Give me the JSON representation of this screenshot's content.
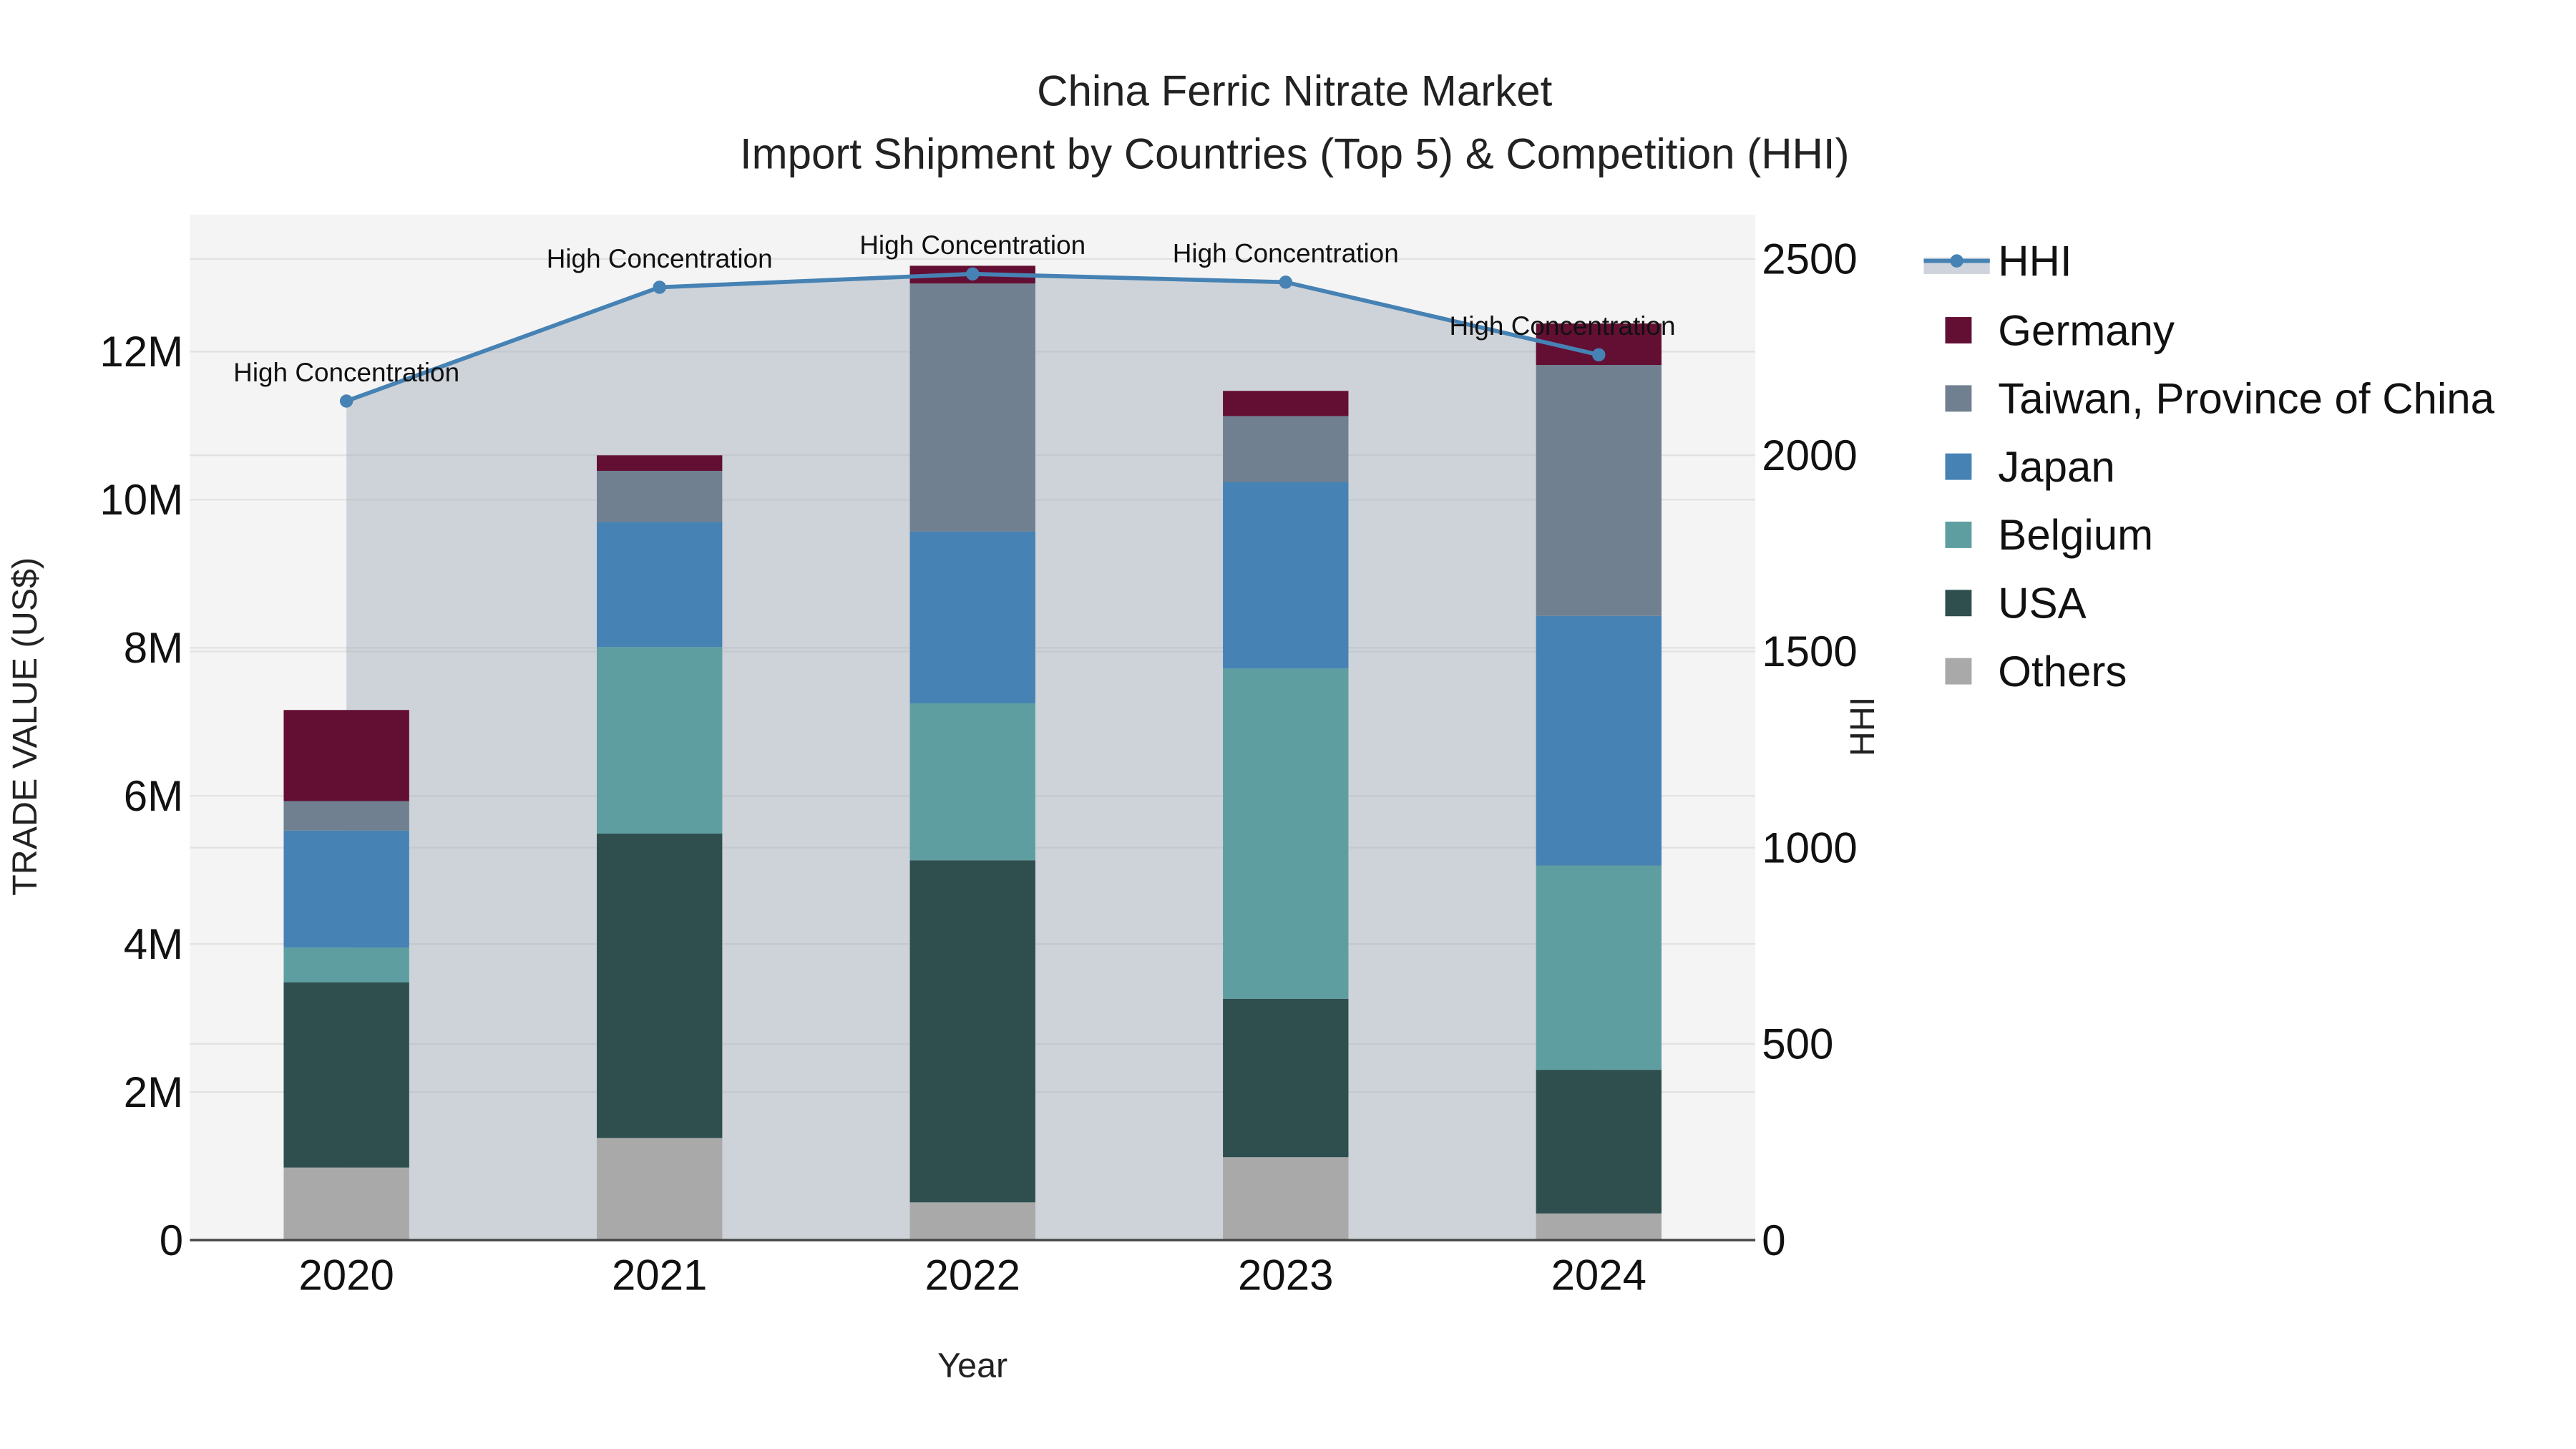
{
  "chart_data": {
    "type": "bar",
    "title": "China Ferric Nitrate Market",
    "subtitle": "Import Shipment by Countries (Top 5) & Competition (HHI)",
    "xlabel": "Year",
    "ylabel": "TRADE VALUE (US$)",
    "y2label": "HHI",
    "categories": [
      "2020",
      "2021",
      "2022",
      "2023",
      "2024"
    ],
    "ylim": [
      0,
      13850000
    ],
    "y2lim": [
      0,
      2613
    ],
    "yticks": [
      {
        "v": 0,
        "label": "0"
      },
      {
        "v": 2000000,
        "label": "2M"
      },
      {
        "v": 4000000,
        "label": "4M"
      },
      {
        "v": 6000000,
        "label": "6M"
      },
      {
        "v": 8000000,
        "label": "8M"
      },
      {
        "v": 10000000,
        "label": "10M"
      },
      {
        "v": 12000000,
        "label": "12M"
      }
    ],
    "y2ticks": [
      0,
      500,
      1000,
      1500,
      2000,
      2500
    ],
    "grid": true,
    "legend_position": "right",
    "series": [
      {
        "name": "Others",
        "color": "#a9a9a9",
        "values": [
          980000,
          1380000,
          510000,
          1120000,
          360000
        ]
      },
      {
        "name": "USA",
        "color": "#2f4f4f",
        "values": [
          2500000,
          4110000,
          4620000,
          2140000,
          1940000
        ]
      },
      {
        "name": "Belgium",
        "color": "#5f9ea0",
        "values": [
          470000,
          2520000,
          2120000,
          4460000,
          2760000
        ]
      },
      {
        "name": "Japan",
        "color": "#4682b4",
        "values": [
          1580000,
          1690000,
          2320000,
          2520000,
          3370000
        ]
      },
      {
        "name": "Taiwan, Province of China",
        "color": "#708090",
        "values": [
          400000,
          690000,
          3350000,
          890000,
          3390000
        ]
      },
      {
        "name": "Germany",
        "color": "#630f33",
        "values": [
          1230000,
          210000,
          240000,
          340000,
          560000
        ]
      }
    ],
    "hhi": {
      "name": "HHI",
      "color": "#4682b4",
      "values": [
        2138,
        2428,
        2462,
        2441,
        2256
      ],
      "annotations": [
        "High Concentration",
        "High Concentration",
        "High Concentration",
        "High Concentration",
        "High Concentration"
      ]
    }
  }
}
